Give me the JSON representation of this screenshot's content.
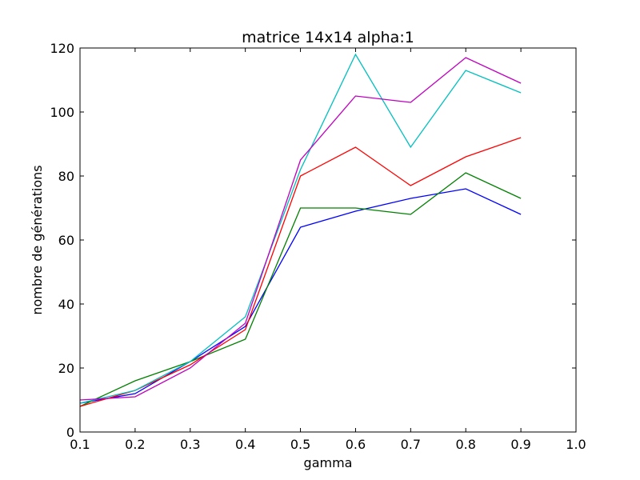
{
  "chart_data": {
    "type": "line",
    "title": "matrice 14x14 alpha:1",
    "xlabel": "gamma",
    "ylabel": "nombre de générations",
    "xlim": [
      0.1,
      1.0
    ],
    "ylim": [
      0,
      120
    ],
    "xticks": [
      "0.1",
      "0.2",
      "0.3",
      "0.4",
      "0.5",
      "0.6",
      "0.7",
      "0.8",
      "0.9",
      "1.0"
    ],
    "yticks": [
      "0",
      "20",
      "40",
      "60",
      "80",
      "100",
      "120"
    ],
    "grid": false,
    "legend": "none",
    "x": [
      0.1,
      0.2,
      0.3,
      0.4,
      0.5,
      0.6,
      0.7,
      0.8,
      0.9
    ],
    "series": [
      {
        "color": "#0000ff",
        "values": [
          9,
          12,
          22,
          33,
          64,
          69,
          73,
          76,
          68
        ]
      },
      {
        "color": "#008000",
        "values": [
          8,
          16,
          22,
          29,
          70,
          70,
          68,
          81,
          73
        ]
      },
      {
        "color": "#ff0000",
        "values": [
          8,
          13,
          21,
          32,
          80,
          89,
          77,
          86,
          92
        ]
      },
      {
        "color": "#00bfbf",
        "values": [
          9,
          13,
          22,
          36,
          82,
          118,
          89,
          113,
          106
        ]
      },
      {
        "color": "#bf00bf",
        "values": [
          10,
          11,
          20,
          34,
          85,
          105,
          103,
          117,
          109
        ]
      }
    ]
  }
}
